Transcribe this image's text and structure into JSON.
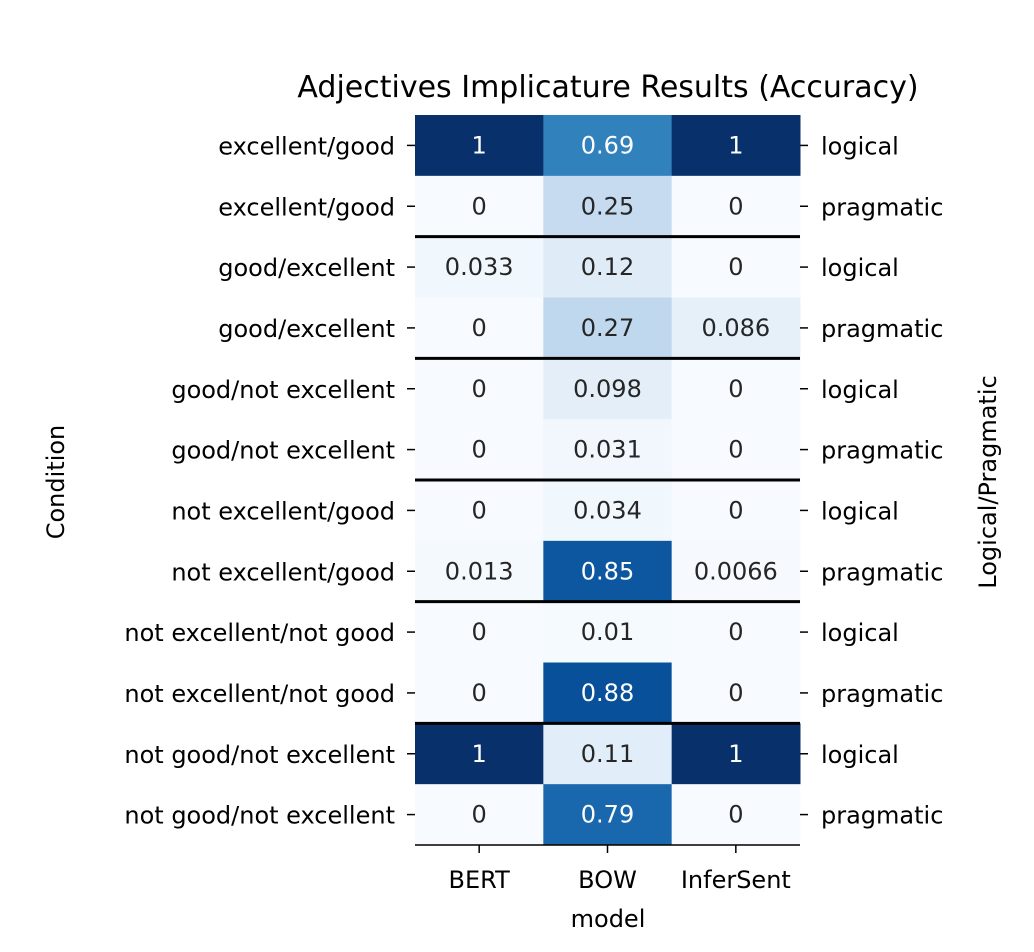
{
  "chart_data": {
    "type": "heatmap",
    "title": "Adjectives Implicature Results (Accuracy)",
    "xlabel": "model",
    "ylabel": "Condition",
    "right_ylabel": "Logical/Pragmatic",
    "columns": [
      "BERT",
      "BOW",
      "InferSent"
    ],
    "rows": [
      {
        "condition": "excellent/good",
        "type": "logical",
        "values": [
          1,
          0.69,
          1
        ],
        "labels": [
          "1",
          "0.69",
          "1"
        ]
      },
      {
        "condition": "excellent/good",
        "type": "pragmatic",
        "values": [
          0,
          0.25,
          0
        ],
        "labels": [
          "0",
          "0.25",
          "0"
        ]
      },
      {
        "condition": "good/excellent",
        "type": "logical",
        "values": [
          0.033,
          0.12,
          0
        ],
        "labels": [
          "0.033",
          "0.12",
          "0"
        ]
      },
      {
        "condition": "good/excellent",
        "type": "pragmatic",
        "values": [
          0,
          0.27,
          0.086
        ],
        "labels": [
          "0",
          "0.27",
          "0.086"
        ]
      },
      {
        "condition": "good/not excellent",
        "type": "logical",
        "values": [
          0,
          0.098,
          0
        ],
        "labels": [
          "0",
          "0.098",
          "0"
        ]
      },
      {
        "condition": "good/not excellent",
        "type": "pragmatic",
        "values": [
          0,
          0.031,
          0
        ],
        "labels": [
          "0",
          "0.031",
          "0"
        ]
      },
      {
        "condition": "not excellent/good",
        "type": "logical",
        "values": [
          0,
          0.034,
          0
        ],
        "labels": [
          "0",
          "0.034",
          "0"
        ]
      },
      {
        "condition": "not excellent/good",
        "type": "pragmatic",
        "values": [
          0.013,
          0.85,
          0.0066
        ],
        "labels": [
          "0.013",
          "0.85",
          "0.0066"
        ]
      },
      {
        "condition": "not excellent/not good",
        "type": "logical",
        "values": [
          0,
          0.01,
          0
        ],
        "labels": [
          "0",
          "0.01",
          "0"
        ]
      },
      {
        "condition": "not excellent/not good",
        "type": "pragmatic",
        "values": [
          0,
          0.88,
          0
        ],
        "labels": [
          "0",
          "0.88",
          "0"
        ]
      },
      {
        "condition": "not good/not excellent",
        "type": "logical",
        "values": [
          1,
          0.11,
          1
        ],
        "labels": [
          "1",
          "0.11",
          "1"
        ]
      },
      {
        "condition": "not good/not excellent",
        "type": "pragmatic",
        "values": [
          0,
          0.79,
          0
        ],
        "labels": [
          "0",
          "0.79",
          "0"
        ]
      }
    ],
    "value_range": [
      0,
      1
    ],
    "colormap": "Blues",
    "colors": {
      "low": "#f7fbff",
      "high": "#08306b",
      "separator": "#000000",
      "dark_text": "#262626",
      "light_text": "#ffffff"
    }
  }
}
